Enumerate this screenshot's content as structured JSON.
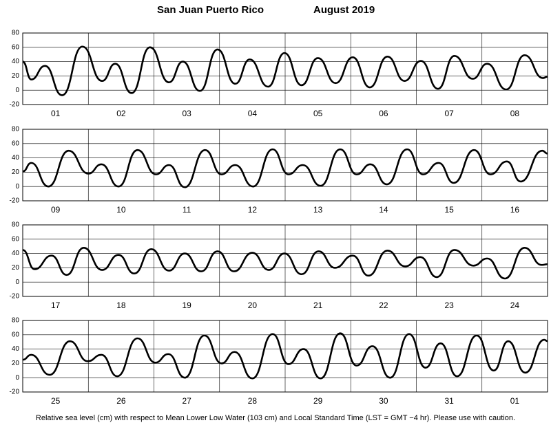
{
  "title": "San Juan Puerto Rico",
  "period": "August   2019",
  "footnote": "Relative sea level (cm) with respect to Mean Lower Low Water (103 cm) and Local Standard Time (LST = GMT −4 hr). Please use with caution.",
  "chart_data": [
    {
      "type": "line",
      "color": "#000000",
      "xlim": [
        0,
        8
      ],
      "ylim": [
        -20,
        80
      ],
      "yticks": [
        -20,
        0,
        20,
        40,
        60,
        80
      ],
      "grid": true,
      "xgrid": [
        1,
        2,
        3,
        4,
        5,
        6,
        7
      ],
      "xticks": [
        {
          "value": 0.5,
          "label": "01"
        },
        {
          "value": 1.5,
          "label": "02"
        },
        {
          "value": 2.5,
          "label": "03"
        },
        {
          "value": 3.5,
          "label": "04"
        },
        {
          "value": 4.5,
          "label": "05"
        },
        {
          "value": 5.5,
          "label": "06"
        },
        {
          "value": 6.5,
          "label": "07"
        },
        {
          "value": 7.5,
          "label": "08"
        }
      ],
      "x": [
        0,
        0.13,
        0.34,
        0.6,
        0.91,
        1.21,
        1.41,
        1.66,
        1.94,
        2.23,
        2.44,
        2.7,
        2.97,
        3.24,
        3.46,
        3.74,
        3.99,
        4.25,
        4.5,
        4.77,
        5.03,
        5.29,
        5.56,
        5.82,
        6.07,
        6.33,
        6.58,
        6.86,
        7.08,
        7.37,
        7.65,
        7.93,
        8
      ],
      "values": [
        40,
        15,
        34,
        -7,
        61,
        13,
        37,
        -4,
        60,
        11,
        40,
        -1,
        57,
        9,
        43,
        5,
        52,
        7,
        45,
        10,
        46,
        4,
        47,
        13,
        41,
        2,
        48,
        16,
        37,
        1,
        49,
        17,
        19
      ]
    },
    {
      "type": "line",
      "color": "#000000",
      "xlim": [
        0,
        8
      ],
      "ylim": [
        -20,
        80
      ],
      "yticks": [
        -20,
        0,
        20,
        40,
        60,
        80
      ],
      "grid": true,
      "xgrid": [
        1,
        2,
        3,
        4,
        5,
        6,
        7
      ],
      "xticks": [
        {
          "value": 0.5,
          "label": "09"
        },
        {
          "value": 1.5,
          "label": "10"
        },
        {
          "value": 2.5,
          "label": "11"
        },
        {
          "value": 3.5,
          "label": "12"
        },
        {
          "value": 4.5,
          "label": "13"
        },
        {
          "value": 5.5,
          "label": "14"
        },
        {
          "value": 6.5,
          "label": "15"
        },
        {
          "value": 7.5,
          "label": "16"
        }
      ],
      "x": [
        0,
        0.13,
        0.39,
        0.7,
        1.0,
        1.2,
        1.46,
        1.75,
        2.03,
        2.23,
        2.47,
        2.78,
        3.03,
        3.24,
        3.51,
        3.81,
        4.05,
        4.27,
        4.54,
        4.84,
        5.09,
        5.3,
        5.55,
        5.86,
        6.1,
        6.34,
        6.57,
        6.88,
        7.13,
        7.38,
        7.59,
        7.92,
        8
      ],
      "values": [
        21,
        33,
        0,
        50,
        18,
        31,
        0,
        51,
        17,
        30,
        -1,
        51,
        17,
        30,
        0,
        52,
        17,
        30,
        1,
        52,
        17,
        31,
        3,
        52,
        17,
        33,
        5,
        51,
        17,
        35,
        7,
        50,
        46
      ]
    },
    {
      "type": "line",
      "color": "#000000",
      "xlim": [
        0,
        8
      ],
      "ylim": [
        -20,
        80
      ],
      "yticks": [
        -20,
        0,
        20,
        40,
        60,
        80
      ],
      "grid": true,
      "xgrid": [
        1,
        2,
        3,
        4,
        5,
        6,
        7
      ],
      "xticks": [
        {
          "value": 0.5,
          "label": "17"
        },
        {
          "value": 1.5,
          "label": "18"
        },
        {
          "value": 2.5,
          "label": "19"
        },
        {
          "value": 3.5,
          "label": "20"
        },
        {
          "value": 4.5,
          "label": "21"
        },
        {
          "value": 5.5,
          "label": "22"
        },
        {
          "value": 6.5,
          "label": "23"
        },
        {
          "value": 7.5,
          "label": "24"
        }
      ],
      "x": [
        0,
        0.18,
        0.44,
        0.67,
        0.93,
        1.21,
        1.46,
        1.7,
        1.96,
        2.23,
        2.47,
        2.72,
        2.97,
        3.22,
        3.5,
        3.75,
        3.99,
        4.25,
        4.51,
        4.76,
        5.03,
        5.27,
        5.56,
        5.83,
        6.06,
        6.31,
        6.58,
        6.87,
        7.08,
        7.35,
        7.65,
        7.91,
        8
      ],
      "values": [
        45,
        18,
        37,
        10,
        48,
        17,
        38,
        12,
        46,
        16,
        40,
        15,
        43,
        15,
        41,
        17,
        40,
        11,
        43,
        20,
        37,
        9,
        44,
        22,
        35,
        7,
        45,
        23,
        33,
        5,
        48,
        24,
        25
      ]
    },
    {
      "type": "line",
      "color": "#000000",
      "xlim": [
        0,
        8
      ],
      "ylim": [
        -20,
        80
      ],
      "yticks": [
        -20,
        0,
        20,
        40,
        60,
        80
      ],
      "grid": true,
      "xgrid": [
        1,
        2,
        3,
        4,
        5,
        6,
        7
      ],
      "xticks": [
        {
          "value": 0.5,
          "label": "25"
        },
        {
          "value": 1.5,
          "label": "26"
        },
        {
          "value": 2.5,
          "label": "27"
        },
        {
          "value": 3.5,
          "label": "28"
        },
        {
          "value": 4.5,
          "label": "29"
        },
        {
          "value": 5.5,
          "label": "30"
        },
        {
          "value": 6.5,
          "label": "31"
        },
        {
          "value": 7.5,
          "label": "01"
        }
      ],
      "x": [
        0,
        0.13,
        0.41,
        0.72,
        0.99,
        1.2,
        1.44,
        1.75,
        2.02,
        2.22,
        2.47,
        2.77,
        3.03,
        3.23,
        3.5,
        3.81,
        4.05,
        4.28,
        4.54,
        4.84,
        5.09,
        5.33,
        5.6,
        5.89,
        6.14,
        6.37,
        6.62,
        6.92,
        7.18,
        7.4,
        7.66,
        7.95,
        8
      ],
      "values": [
        25,
        32,
        4,
        51,
        23,
        32,
        2,
        55,
        21,
        33,
        0,
        59,
        20,
        36,
        -1,
        61,
        19,
        40,
        -1,
        62,
        17,
        44,
        0,
        61,
        14,
        48,
        2,
        59,
        10,
        51,
        7,
        53,
        51
      ]
    }
  ]
}
